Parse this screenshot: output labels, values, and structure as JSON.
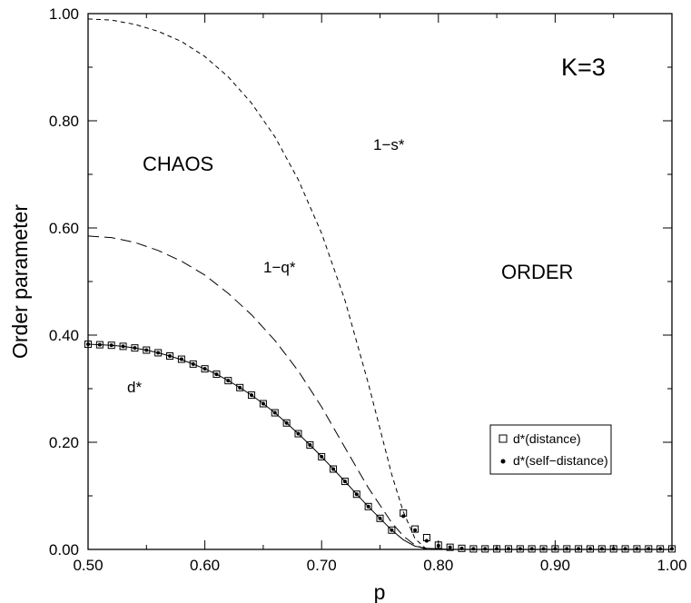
{
  "chart_data": {
    "type": "line",
    "title": "",
    "xlabel": "p",
    "ylabel": "Order parameter",
    "xlim": [
      0.5,
      1.0
    ],
    "ylim": [
      0.0,
      1.0
    ],
    "grid": false,
    "legend_position": "lower-right",
    "x_ticks": [
      "0.50",
      "0.60",
      "0.70",
      "0.80",
      "0.90",
      "1.00"
    ],
    "y_ticks": [
      "0.00",
      "0.20",
      "0.40",
      "0.60",
      "0.80",
      "1.00"
    ],
    "annotations": {
      "k": "K=3",
      "chaos": "CHAOS",
      "order": "ORDER",
      "s_curve": "1−s*",
      "q_curve": "1−q*",
      "d_curve": "d*"
    },
    "series": [
      {
        "name": "1−s*",
        "style": "dashed-short",
        "x": [
          0.5,
          0.52,
          0.54,
          0.56,
          0.58,
          0.6,
          0.62,
          0.64,
          0.66,
          0.68,
          0.7,
          0.72,
          0.74,
          0.76,
          0.77,
          0.78,
          0.79
        ],
        "y": [
          0.99,
          0.988,
          0.98,
          0.967,
          0.948,
          0.92,
          0.882,
          0.833,
          0.77,
          0.69,
          0.59,
          0.465,
          0.31,
          0.14,
          0.07,
          0.02,
          0.0
        ]
      },
      {
        "name": "1−q*",
        "style": "dashed-long",
        "x": [
          0.5,
          0.52,
          0.54,
          0.56,
          0.58,
          0.6,
          0.62,
          0.64,
          0.66,
          0.68,
          0.7,
          0.72,
          0.74,
          0.76,
          0.77,
          0.78,
          0.79
        ],
        "y": [
          0.585,
          0.582,
          0.573,
          0.558,
          0.538,
          0.512,
          0.478,
          0.438,
          0.39,
          0.333,
          0.266,
          0.19,
          0.115,
          0.05,
          0.025,
          0.008,
          0.0
        ]
      },
      {
        "name": "d*",
        "style": "solid",
        "x": [
          0.5,
          0.51,
          0.52,
          0.53,
          0.54,
          0.55,
          0.56,
          0.57,
          0.58,
          0.59,
          0.6,
          0.61,
          0.62,
          0.63,
          0.64,
          0.65,
          0.66,
          0.67,
          0.68,
          0.69,
          0.7,
          0.71,
          0.72,
          0.73,
          0.74,
          0.75,
          0.76,
          0.77,
          0.78,
          0.79,
          0.8,
          0.81,
          0.82,
          0.83,
          0.84,
          0.85,
          0.86,
          0.87,
          0.88,
          0.89,
          0.9,
          0.91,
          0.92,
          0.93,
          0.94,
          0.95,
          0.96,
          0.97,
          0.98,
          0.99,
          1.0
        ],
        "y": [
          0.383,
          0.382,
          0.381,
          0.379,
          0.376,
          0.372,
          0.367,
          0.361,
          0.354,
          0.346,
          0.337,
          0.327,
          0.315,
          0.302,
          0.288,
          0.272,
          0.255,
          0.236,
          0.216,
          0.195,
          0.173,
          0.15,
          0.127,
          0.103,
          0.08,
          0.058,
          0.036,
          0.018,
          0.006,
          0.002,
          0.001,
          0.0,
          0.0,
          0.0,
          0.0,
          0.0,
          0.0,
          0.0,
          0.0,
          0.0,
          0.0,
          0.0,
          0.0,
          0.0,
          0.0,
          0.0,
          0.0,
          0.0,
          0.0,
          0.0,
          0.0
        ]
      },
      {
        "name": "d*(distance)",
        "style": "open-square",
        "x": [
          0.5,
          0.51,
          0.52,
          0.53,
          0.54,
          0.55,
          0.56,
          0.57,
          0.58,
          0.59,
          0.6,
          0.61,
          0.62,
          0.63,
          0.64,
          0.65,
          0.66,
          0.67,
          0.68,
          0.69,
          0.7,
          0.71,
          0.72,
          0.73,
          0.74,
          0.75,
          0.76,
          0.77,
          0.78,
          0.79,
          0.8,
          0.81,
          0.82,
          0.83,
          0.84,
          0.85,
          0.86,
          0.87,
          0.88,
          0.89,
          0.9,
          0.91,
          0.92,
          0.93,
          0.94,
          0.95,
          0.96,
          0.97,
          0.98,
          0.99,
          1.0
        ],
        "y": [
          0.383,
          0.382,
          0.381,
          0.379,
          0.376,
          0.372,
          0.367,
          0.361,
          0.355,
          0.346,
          0.337,
          0.327,
          0.315,
          0.302,
          0.288,
          0.272,
          0.255,
          0.236,
          0.216,
          0.195,
          0.173,
          0.15,
          0.127,
          0.103,
          0.08,
          0.058,
          0.036,
          0.068,
          0.038,
          0.022,
          0.008,
          0.004,
          0.002,
          0.001,
          0.001,
          0.001,
          0.001,
          0.001,
          0.001,
          0.001,
          0.001,
          0.001,
          0.001,
          0.001,
          0.001,
          0.001,
          0.001,
          0.001,
          0.001,
          0.001,
          0.001
        ]
      },
      {
        "name": "d*(self−distance)",
        "style": "filled-dot",
        "x": [
          0.5,
          0.51,
          0.52,
          0.53,
          0.54,
          0.55,
          0.56,
          0.57,
          0.58,
          0.59,
          0.6,
          0.61,
          0.62,
          0.63,
          0.64,
          0.65,
          0.66,
          0.67,
          0.68,
          0.69,
          0.7,
          0.71,
          0.72,
          0.73,
          0.74,
          0.75,
          0.76,
          0.77,
          0.78,
          0.79,
          0.8,
          0.81,
          0.82,
          0.83,
          0.84,
          0.85,
          0.86,
          0.87,
          0.88,
          0.89,
          0.9,
          0.91,
          0.92,
          0.93,
          0.94,
          0.95,
          0.96,
          0.97,
          0.98,
          0.99,
          1.0
        ],
        "y": [
          0.383,
          0.382,
          0.381,
          0.379,
          0.376,
          0.372,
          0.367,
          0.361,
          0.355,
          0.346,
          0.337,
          0.327,
          0.315,
          0.302,
          0.288,
          0.272,
          0.255,
          0.236,
          0.216,
          0.195,
          0.173,
          0.15,
          0.127,
          0.103,
          0.08,
          0.058,
          0.036,
          0.062,
          0.036,
          0.016,
          0.007,
          0.004,
          0.002,
          0.001,
          0.001,
          0.001,
          0.001,
          0.001,
          0.001,
          0.001,
          0.001,
          0.001,
          0.001,
          0.001,
          0.001,
          0.001,
          0.001,
          0.001,
          0.001,
          0.001,
          0.001
        ]
      }
    ],
    "legend": [
      {
        "marker": "open-square",
        "label": "d*(distance)"
      },
      {
        "marker": "filled-dot",
        "label": "d*(self−distance)"
      }
    ]
  }
}
